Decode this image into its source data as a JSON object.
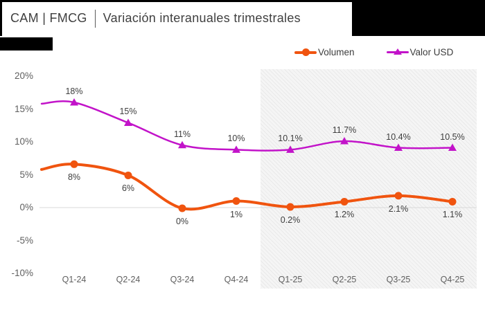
{
  "header": {
    "title_left": "CAM | FMCG",
    "title_right": "Variación interanuales trimestrales"
  },
  "chart_data": {
    "type": "line",
    "title": "CAM | FMCG | Variación interanuales trimestrales",
    "categories": [
      "Q1-24",
      "Q2-24",
      "Q3-24",
      "Q4-24",
      "Q1-25",
      "Q2-25",
      "Q3-25",
      "Q4-25"
    ],
    "y_ticks": [
      "20%",
      "15%",
      "10%",
      "5%",
      "0%",
      "-5%",
      "-10%"
    ],
    "y_tick_values": [
      20,
      15,
      10,
      5,
      0,
      -5,
      -10
    ],
    "ylim": [
      -10,
      20
    ],
    "grid": "horizontal line at 0% only",
    "legend_position": "top-right",
    "gridline_color": "#d9d9d9",
    "forecast_shading": {
      "from_category": "Q1-25",
      "to_category": "Q4-25",
      "fill": "#f5f5f5",
      "pattern": "diagonal-hatch"
    },
    "series": [
      {
        "name": "Volumen",
        "color": "#F0540F",
        "marker": "circle",
        "labels": [
          "8%",
          "6%",
          "0%",
          "1%",
          "0.2%",
          "1.2%",
          "2.1%",
          "1.1%"
        ],
        "values": [
          8,
          6,
          0,
          1,
          0.2,
          1.2,
          2.1,
          1.1
        ],
        "plot_values": [
          6.6,
          4.9,
          -0.1,
          1.0,
          0.1,
          0.9,
          1.8,
          0.9
        ],
        "lead_in_value": 5.8,
        "label_side": "below"
      },
      {
        "name": "Valor USD",
        "color": "#C213C9",
        "marker": "triangle",
        "labels": [
          "18%",
          "15%",
          "11%",
          "10%",
          "10.1%",
          "11.7%",
          "10.4%",
          "10.5%"
        ],
        "values": [
          18,
          15,
          11,
          10,
          10.1,
          11.7,
          10.4,
          10.5
        ],
        "plot_values": [
          16.0,
          12.9,
          9.5,
          8.8,
          8.8,
          10.1,
          9.1,
          9.1
        ],
        "lead_in_value": 15.8,
        "label_side": "above"
      }
    ]
  }
}
